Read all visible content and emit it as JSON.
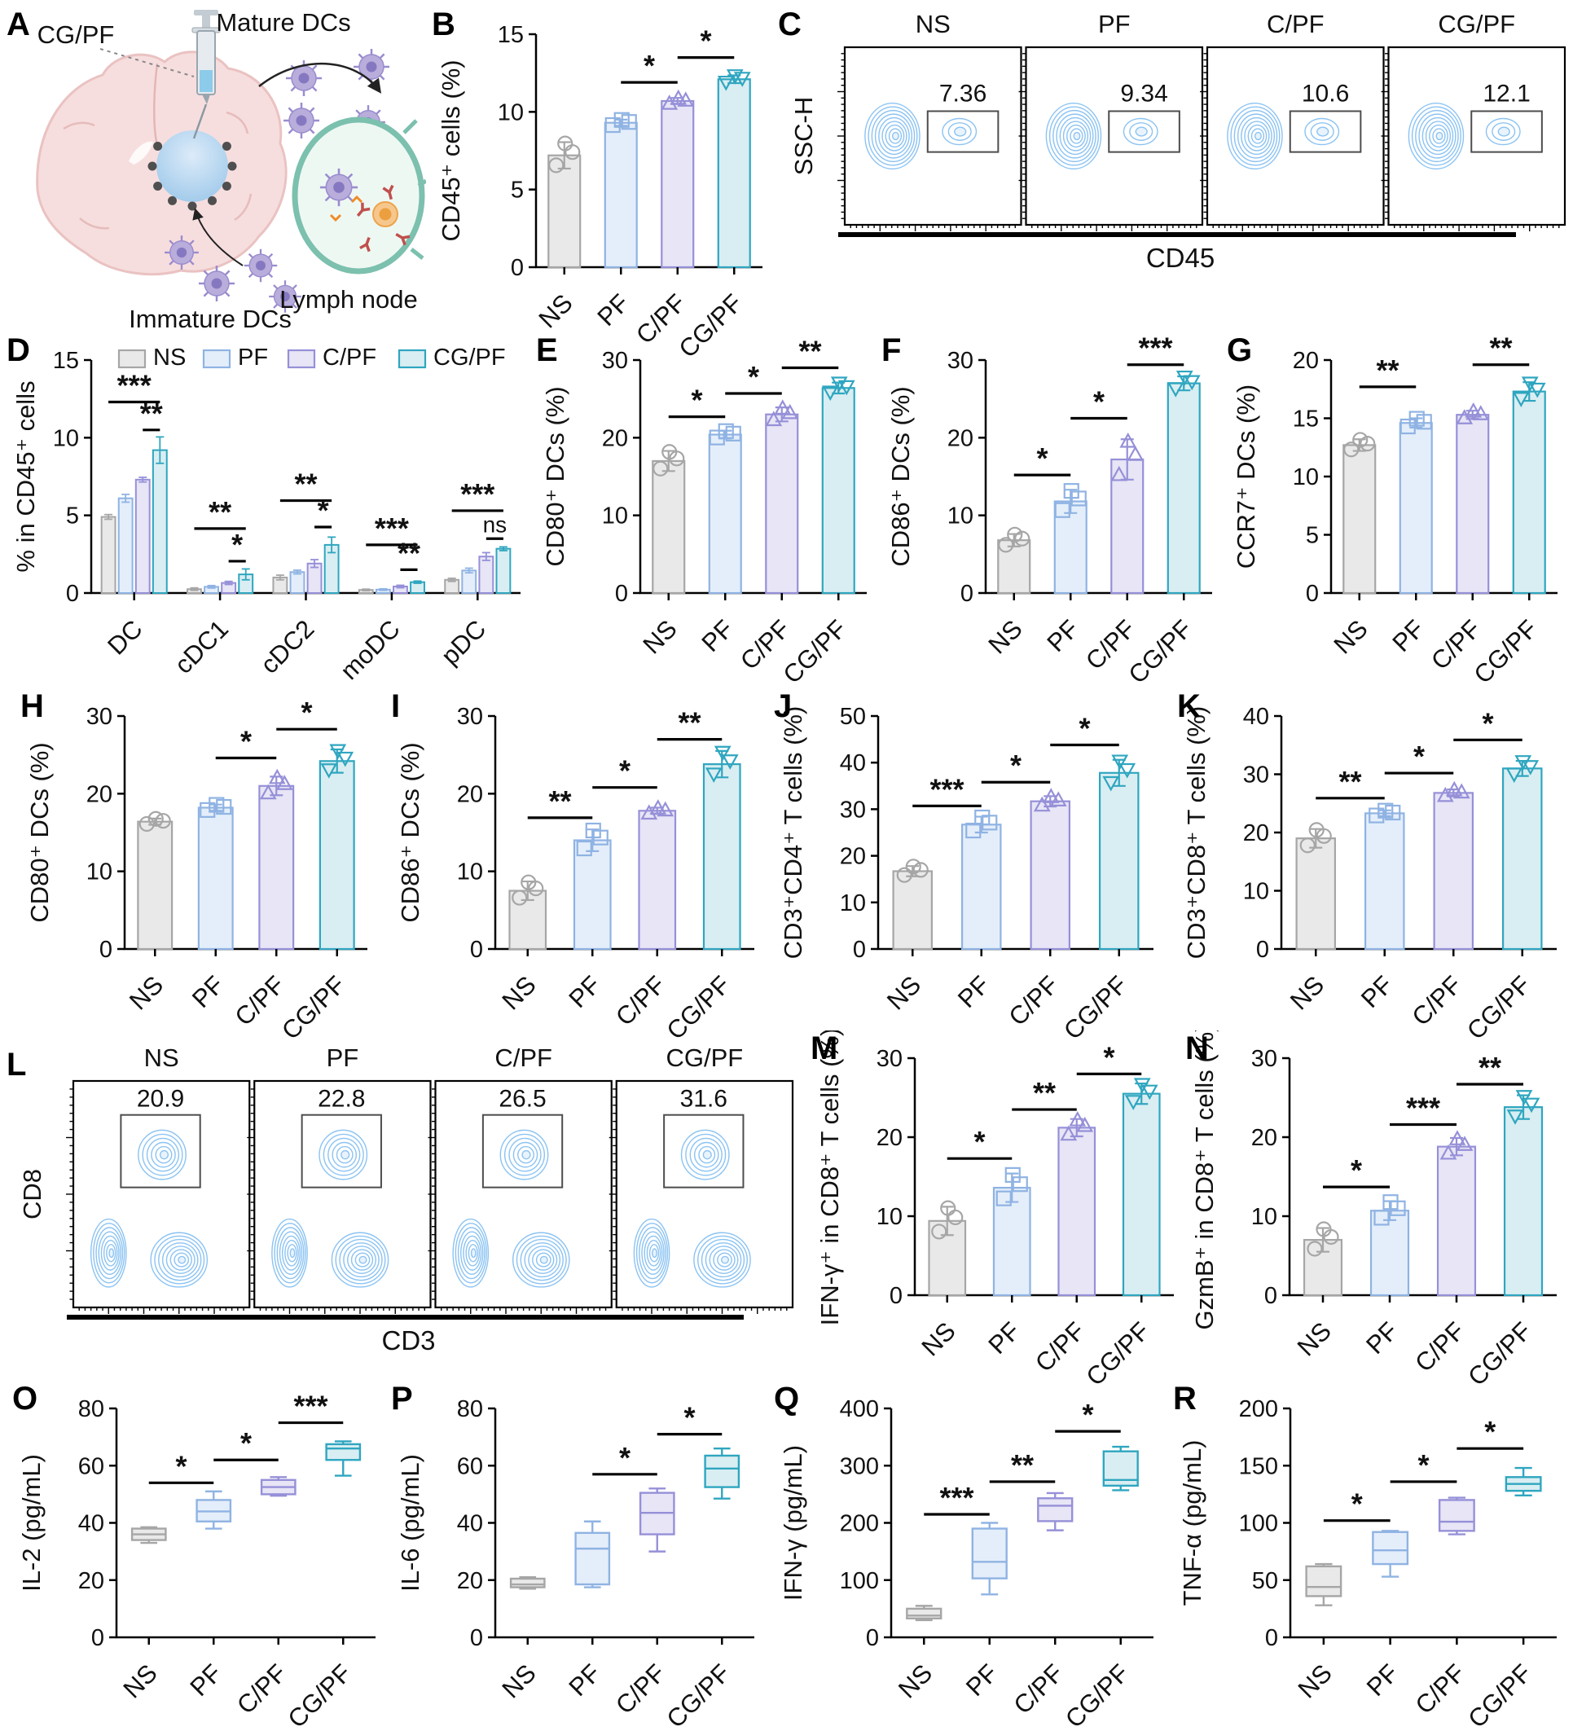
{
  "letters": {
    "A": "A",
    "B": "B",
    "C": "C",
    "D": "D",
    "E": "E",
    "F": "F",
    "G": "G",
    "H": "H",
    "I": "I",
    "J": "J",
    "K": "K",
    "L": "L",
    "M": "M",
    "N": "N",
    "O": "O",
    "P": "P",
    "Q": "Q",
    "R": "R"
  },
  "schematic": {
    "cgpf_label": "CG/PF",
    "mature_dcs_label": "Mature DCs",
    "lymph_node_label": "Lymph node",
    "immature_dcs_label": "Immature DCs"
  },
  "style": {
    "groups": [
      {
        "name": "NS",
        "fill": "#e9e9e9",
        "stroke": "#a6a6a6",
        "marker": "circle"
      },
      {
        "name": "PF",
        "fill": "#e4eefa",
        "stroke": "#8fb3e3",
        "marker": "square"
      },
      {
        "name": "C/PF",
        "fill": "#e7e5f6",
        "stroke": "#9690d8",
        "marker": "triangle-up"
      },
      {
        "name": "CG/PF",
        "fill": "#d9eef2",
        "stroke": "#2fa6c0",
        "marker": "triangle-down"
      }
    ],
    "flow_contour": "#8cc3f2",
    "flow_inner": "#e8f3fd",
    "gate_stroke": "#4d4d4d",
    "axis_color": "#000000"
  },
  "chart_data": [
    {
      "panel": "B",
      "type": "bar",
      "ylabel": "CD45⁺ cells (%)",
      "ylim": [
        0,
        15
      ],
      "yticks": [
        0,
        5,
        10,
        15
      ],
      "groups": [
        "NS",
        "PF",
        "C/PF",
        "CG/PF"
      ],
      "values": [
        7.2,
        9.3,
        10.7,
        12.1
      ],
      "errors": [
        0.85,
        0.2,
        0.2,
        0.25
      ],
      "sig": [
        {
          "a": 1,
          "b": 2,
          "label": "*",
          "y": 11.9
        },
        {
          "a": 2,
          "b": 3,
          "label": "*",
          "y": 13.5
        }
      ]
    },
    {
      "panel": "C",
      "type": "flow",
      "layout": "ssc",
      "titles": [
        "NS",
        "PF",
        "C/PF",
        "CG/PF"
      ],
      "gate_values": [
        "7.36",
        "9.34",
        "10.6",
        "12.1"
      ],
      "xlabel": "CD45",
      "ylabel": "SSC-H"
    },
    {
      "panel": "D",
      "type": "grouped_bar",
      "ylabel": "% in CD45⁺ cells",
      "ylim": [
        0,
        15
      ],
      "yticks": [
        0,
        5,
        10,
        15
      ],
      "ml": 104,
      "categories": [
        "DC",
        "cDC1",
        "cDC2",
        "moDC",
        "pDC"
      ],
      "series": [
        {
          "name": "NS",
          "values": [
            4.9,
            0.25,
            1.0,
            0.2,
            0.85
          ],
          "errors": [
            0.15,
            0.08,
            0.15,
            0.05,
            0.1
          ]
        },
        {
          "name": "PF",
          "values": [
            6.1,
            0.4,
            1.35,
            0.22,
            1.45
          ],
          "errors": [
            0.25,
            0.08,
            0.12,
            0.05,
            0.15
          ]
        },
        {
          "name": "C/PF",
          "values": [
            7.3,
            0.65,
            1.9,
            0.42,
            2.35
          ],
          "errors": [
            0.15,
            0.1,
            0.25,
            0.08,
            0.25
          ]
        },
        {
          "name": "CG/PF",
          "values": [
            9.2,
            1.2,
            3.1,
            0.7,
            2.85
          ],
          "errors": [
            0.85,
            0.35,
            0.5,
            0.07,
            0.12
          ]
        }
      ],
      "sig": [
        {
          "cat": 0,
          "a": 0,
          "b": 3,
          "label": "***",
          "y": 12.3
        },
        {
          "cat": 0,
          "a": 2,
          "b": 3,
          "label": "**",
          "y": 10.5
        },
        {
          "cat": 1,
          "a": 0,
          "b": 3,
          "label": "**",
          "y": 4.15
        },
        {
          "cat": 1,
          "a": 2,
          "b": 3,
          "label": "*",
          "y": 2.05
        },
        {
          "cat": 2,
          "a": 0,
          "b": 3,
          "label": "**",
          "y": 5.95
        },
        {
          "cat": 2,
          "a": 2,
          "b": 3,
          "label": "*",
          "y": 4.25
        },
        {
          "cat": 3,
          "a": 0,
          "b": 3,
          "label": "***",
          "y": 3.1
        },
        {
          "cat": 3,
          "a": 2,
          "b": 3,
          "label": "**",
          "y": 1.5
        },
        {
          "cat": 4,
          "a": 0,
          "b": 3,
          "label": "***",
          "y": 5.3
        },
        {
          "cat": 4,
          "a": 2,
          "b": 3,
          "label": "ns",
          "y": 3.5
        }
      ]
    },
    {
      "panel": "E",
      "type": "bar",
      "ylabel": "CD80⁺ DCs (%)",
      "ylim": [
        0,
        30
      ],
      "yticks": [
        0,
        10,
        20,
        30
      ],
      "groups": [
        "NS",
        "PF",
        "C/PF",
        "CG/PF"
      ],
      "values": [
        17.0,
        20.4,
        23.0,
        26.4
      ],
      "errors": [
        1.3,
        0.5,
        0.9,
        0.7
      ],
      "sig": [
        {
          "a": 0,
          "b": 1,
          "label": "*",
          "y": 22.7
        },
        {
          "a": 1,
          "b": 2,
          "label": "*",
          "y": 25.7
        },
        {
          "a": 2,
          "b": 3,
          "label": "**",
          "y": 29.0
        }
      ]
    },
    {
      "panel": "F",
      "type": "bar",
      "ylabel": "CD86⁺ DCs (%)",
      "ylim": [
        0,
        30
      ],
      "yticks": [
        0,
        10,
        20,
        30
      ],
      "groups": [
        "NS",
        "PF",
        "C/PF",
        "CG/PF"
      ],
      "values": [
        6.8,
        11.8,
        17.2,
        27.0
      ],
      "errors": [
        0.8,
        1.5,
        2.6,
        0.9
      ],
      "sig": [
        {
          "a": 0,
          "b": 1,
          "label": "*",
          "y": 15.2
        },
        {
          "a": 1,
          "b": 2,
          "label": "*",
          "y": 22.5
        },
        {
          "a": 2,
          "b": 3,
          "label": "***",
          "y": 29.4
        }
      ]
    },
    {
      "panel": "G",
      "type": "bar",
      "ylabel": "CCR7⁺ DCs (%)",
      "ylim": [
        0,
        20
      ],
      "yticks": [
        0,
        5,
        10,
        15,
        20
      ],
      "groups": [
        "NS",
        "PF",
        "C/PF",
        "CG/PF"
      ],
      "values": [
        12.7,
        14.6,
        15.3,
        17.3
      ],
      "errors": [
        0.5,
        0.4,
        0.35,
        0.8
      ],
      "sig": [
        {
          "a": 0,
          "b": 1,
          "label": "**",
          "y": 17.7
        },
        {
          "a": 2,
          "b": 3,
          "label": "**",
          "y": 19.6
        }
      ]
    },
    {
      "panel": "H",
      "type": "bar",
      "ylabel": "CD80⁺ DCs (%)",
      "ylim": [
        0,
        30
      ],
      "yticks": [
        0,
        10,
        20,
        30
      ],
      "groups": [
        "NS",
        "PF",
        "C/PF",
        "CG/PF"
      ],
      "values": [
        16.4,
        18.2,
        21.0,
        24.2
      ],
      "errors": [
        0.4,
        0.4,
        1.2,
        1.5
      ],
      "sig": [
        {
          "a": 1,
          "b": 2,
          "label": "*",
          "y": 24.6
        },
        {
          "a": 2,
          "b": 3,
          "label": "*",
          "y": 28.3
        }
      ]
    },
    {
      "panel": "I",
      "type": "bar",
      "ylabel": "CD86⁺ DCs (%)",
      "ylim": [
        0,
        30
      ],
      "yticks": [
        0,
        10,
        20,
        30
      ],
      "groups": [
        "NS",
        "PF",
        "C/PF",
        "CG/PF"
      ],
      "values": [
        7.5,
        14.0,
        17.8,
        23.8
      ],
      "errors": [
        1.2,
        1.4,
        0.4,
        1.7
      ],
      "sig": [
        {
          "a": 0,
          "b": 1,
          "label": "**",
          "y": 16.9
        },
        {
          "a": 1,
          "b": 2,
          "label": "*",
          "y": 20.8
        },
        {
          "a": 2,
          "b": 3,
          "label": "**",
          "y": 27.0
        }
      ]
    },
    {
      "panel": "J",
      "type": "bar",
      "ylabel": "CD3⁺CD4⁺ T cells (%)",
      "ylim": [
        0,
        50
      ],
      "yticks": [
        0,
        10,
        20,
        30,
        40,
        50
      ],
      "groups": [
        "NS",
        "PF",
        "C/PF",
        "CG/PF"
      ],
      "values": [
        16.7,
        26.7,
        31.7,
        37.8
      ],
      "errors": [
        1.1,
        1.7,
        1.1,
        2.8
      ],
      "sig": [
        {
          "a": 0,
          "b": 1,
          "label": "***",
          "y": 30.7
        },
        {
          "a": 1,
          "b": 2,
          "label": "*",
          "y": 35.8
        },
        {
          "a": 2,
          "b": 3,
          "label": "*",
          "y": 43.8
        }
      ]
    },
    {
      "panel": "K",
      "type": "bar",
      "ylabel": "CD3⁺CD8⁺ T cells (%)",
      "ylim": [
        0,
        40
      ],
      "yticks": [
        0,
        10,
        20,
        30,
        40
      ],
      "groups": [
        "NS",
        "PF",
        "C/PF",
        "CG/PF"
      ],
      "values": [
        19.0,
        23.3,
        26.8,
        31.0
      ],
      "errors": [
        1.6,
        0.5,
        0.6,
        1.3
      ],
      "sig": [
        {
          "a": 0,
          "b": 1,
          "label": "**",
          "y": 25.9
        },
        {
          "a": 1,
          "b": 2,
          "label": "*",
          "y": 30.2
        },
        {
          "a": 2,
          "b": 3,
          "label": "*",
          "y": 35.9
        }
      ]
    },
    {
      "panel": "L",
      "type": "flow",
      "layout": "cd8",
      "titles": [
        "NS",
        "PF",
        "C/PF",
        "CG/PF"
      ],
      "gate_values": [
        "20.9",
        "22.8",
        "26.5",
        "31.6"
      ],
      "xlabel": "CD3",
      "ylabel": "CD8"
    },
    {
      "panel": "M",
      "type": "bar",
      "ylabel": "IFN-γ⁺ in CD8⁺ T cells (%)",
      "ylim": [
        0,
        30
      ],
      "yticks": [
        0,
        10,
        20,
        30
      ],
      "groups": [
        "NS",
        "PF",
        "C/PF",
        "CG/PF"
      ],
      "values": [
        9.4,
        13.6,
        21.2,
        25.5
      ],
      "errors": [
        1.8,
        1.8,
        1.1,
        1.3
      ],
      "sig": [
        {
          "a": 0,
          "b": 1,
          "label": "*",
          "y": 17.3
        },
        {
          "a": 1,
          "b": 2,
          "label": "**",
          "y": 23.5
        },
        {
          "a": 2,
          "b": 3,
          "label": "*",
          "y": 28.0
        }
      ]
    },
    {
      "panel": "N",
      "type": "bar",
      "ylabel": "GzmB⁺ in CD8⁺ T cells (%)",
      "ylim": [
        0,
        30
      ],
      "yticks": [
        0,
        10,
        20,
        30
      ],
      "groups": [
        "NS",
        "PF",
        "C/PF",
        "CG/PF"
      ],
      "values": [
        7.0,
        10.7,
        18.8,
        23.8
      ],
      "errors": [
        1.5,
        1.2,
        1.1,
        1.5
      ],
      "sig": [
        {
          "a": 0,
          "b": 1,
          "label": "*",
          "y": 13.7
        },
        {
          "a": 1,
          "b": 2,
          "label": "***",
          "y": 21.6
        },
        {
          "a": 2,
          "b": 3,
          "label": "**",
          "y": 26.7
        }
      ]
    },
    {
      "panel": "O",
      "type": "box",
      "ylabel": "IL-2 (pg/mL)",
      "ylim": [
        0,
        80
      ],
      "yticks": [
        0,
        20,
        40,
        60,
        80
      ],
      "groups": [
        "NS",
        "PF",
        "C/PF",
        "CG/PF"
      ],
      "boxes": [
        {
          "whislo": 33,
          "q1": 34,
          "med": 36,
          "q3": 38,
          "whishi": 38.5
        },
        {
          "whislo": 38,
          "q1": 40.5,
          "med": 44,
          "q3": 48,
          "whishi": 51
        },
        {
          "whislo": 49.5,
          "q1": 50,
          "med": 52.5,
          "q3": 55,
          "whishi": 56
        },
        {
          "whislo": 56.5,
          "q1": 62,
          "med": 66,
          "q3": 67.5,
          "whishi": 68.5
        }
      ],
      "sig": [
        {
          "a": 0,
          "b": 1,
          "label": "*",
          "y": 54
        },
        {
          "a": 1,
          "b": 2,
          "label": "*",
          "y": 62
        },
        {
          "a": 2,
          "b": 3,
          "label": "***",
          "y": 75
        }
      ]
    },
    {
      "panel": "P",
      "type": "box",
      "ylabel": "IL-6 (pg/mL)",
      "ylim": [
        0,
        80
      ],
      "yticks": [
        0,
        20,
        40,
        60,
        80
      ],
      "groups": [
        "NS",
        "PF",
        "C/PF",
        "CG/PF"
      ],
      "boxes": [
        {
          "whislo": 17,
          "q1": 17.5,
          "med": 18.5,
          "q3": 20.5,
          "whishi": 21
        },
        {
          "whislo": 17.5,
          "q1": 18.5,
          "med": 31,
          "q3": 36.5,
          "whishi": 40.5
        },
        {
          "whislo": 30,
          "q1": 36,
          "med": 43.5,
          "q3": 50.5,
          "whishi": 52
        },
        {
          "whislo": 48.5,
          "q1": 52.5,
          "med": 59,
          "q3": 63.5,
          "whishi": 66
        }
      ],
      "sig": [
        {
          "a": 1,
          "b": 2,
          "label": "*",
          "y": 57
        },
        {
          "a": 2,
          "b": 3,
          "label": "*",
          "y": 71
        }
      ]
    },
    {
      "panel": "Q",
      "type": "box",
      "ylabel": "IFN-γ (pg/mL)",
      "ylim": [
        0,
        400
      ],
      "yticks": [
        0,
        100,
        200,
        300,
        400
      ],
      "groups": [
        "NS",
        "PF",
        "C/PF",
        "CG/PF"
      ],
      "boxes": [
        {
          "whislo": 30,
          "q1": 33,
          "med": 38,
          "q3": 50,
          "whishi": 55
        },
        {
          "whislo": 75,
          "q1": 103,
          "med": 132,
          "q3": 190,
          "whishi": 200
        },
        {
          "whislo": 187,
          "q1": 203,
          "med": 230,
          "q3": 243,
          "whishi": 252
        },
        {
          "whislo": 257,
          "q1": 265,
          "med": 275,
          "q3": 325,
          "whishi": 333
        }
      ],
      "sig": [
        {
          "a": 0,
          "b": 1,
          "label": "***",
          "y": 215
        },
        {
          "a": 1,
          "b": 2,
          "label": "**",
          "y": 272
        },
        {
          "a": 2,
          "b": 3,
          "label": "*",
          "y": 360
        }
      ]
    },
    {
      "panel": "R",
      "type": "box",
      "ylabel": "TNF-α (pg/mL)",
      "ylim": [
        0,
        200
      ],
      "yticks": [
        0,
        50,
        100,
        150,
        200
      ],
      "groups": [
        "NS",
        "PF",
        "C/PF",
        "CG/PF"
      ],
      "boxes": [
        {
          "whislo": 28,
          "q1": 36,
          "med": 44,
          "q3": 62,
          "whishi": 64
        },
        {
          "whislo": 53,
          "q1": 64,
          "med": 76,
          "q3": 92,
          "whishi": 93
        },
        {
          "whislo": 90,
          "q1": 93,
          "med": 101,
          "q3": 120,
          "whishi": 122
        },
        {
          "whislo": 124,
          "q1": 128,
          "med": 134,
          "q3": 140,
          "whishi": 148
        }
      ],
      "sig": [
        {
          "a": 0,
          "b": 1,
          "label": "*",
          "y": 102
        },
        {
          "a": 1,
          "b": 2,
          "label": "*",
          "y": 136
        },
        {
          "a": 2,
          "b": 3,
          "label": "*",
          "y": 165
        }
      ]
    }
  ]
}
